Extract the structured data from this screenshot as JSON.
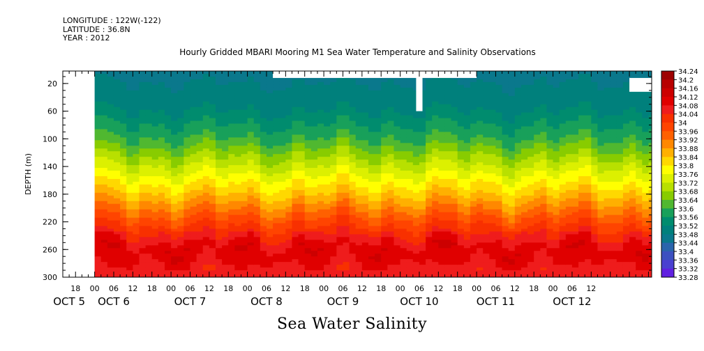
{
  "header": {
    "longitude": "LONGITUDE : 122W(-122)",
    "latitude": "LATITUDE : 36.8N",
    "year": "YEAR : 2012"
  },
  "chart_data": {
    "type": "heatmap",
    "title": "Hourly Gridded MBARI Mooring M1 Sea Water Temperature and Salinity Observations",
    "subtitle": "Sea Water Salinity",
    "ylabel": "DEPTH (m)",
    "xlabel": "",
    "y_reversed": true,
    "ylim": [
      300,
      2
    ],
    "xlim_hours": [
      -10,
      175
    ],
    "y_ticks": [
      20,
      60,
      100,
      140,
      180,
      220,
      260,
      300
    ],
    "x_hour_labels": [
      "18",
      "00",
      "06",
      "12",
      "18",
      "00",
      "06",
      "12",
      "18",
      "00",
      "06",
      "12",
      "18",
      "00",
      "06",
      "12",
      "18",
      "00",
      "06",
      "12",
      "18",
      "00",
      "06",
      "12",
      "18",
      "00",
      "06",
      "12"
    ],
    "x_hour_values": [
      -6,
      0,
      6,
      12,
      18,
      24,
      30,
      36,
      42,
      48,
      54,
      60,
      66,
      72,
      78,
      84,
      90,
      96,
      102,
      108,
      114,
      120,
      126,
      132,
      138,
      144,
      150,
      156
    ],
    "x_day_labels": [
      {
        "label": "OCT  5",
        "hour": -8
      },
      {
        "label": "OCT  6",
        "hour": 6
      },
      {
        "label": "OCT  7",
        "hour": 30
      },
      {
        "label": "OCT  8",
        "hour": 54
      },
      {
        "label": "OCT  9",
        "hour": 78
      },
      {
        "label": "OCT 10",
        "hour": 102
      },
      {
        "label": "OCT 11",
        "hour": 126
      },
      {
        "label": "OCT 12",
        "hour": 150
      }
    ],
    "colorbar_levels": [
      "34.24",
      "34.2",
      "34.16",
      "34.12",
      "34.08",
      "34.04",
      "34",
      "33.96",
      "33.92",
      "33.88",
      "33.84",
      "33.8",
      "33.76",
      "33.72",
      "33.68",
      "33.64",
      "33.6",
      "33.56",
      "33.52",
      "33.48",
      "33.44",
      "33.4",
      "33.36",
      "33.32",
      "33.28"
    ],
    "colorbar_colors": [
      "#9e0000",
      "#b80000",
      "#cc0000",
      "#e00000",
      "#ef1c1c",
      "#f83000",
      "#ff4400",
      "#ff6000",
      "#ff8800",
      "#ffb000",
      "#ffd800",
      "#ffff00",
      "#dcf000",
      "#b8e000",
      "#88cc00",
      "#50b830",
      "#18a05a",
      "#008c6e",
      "#00807c",
      "#0a788c",
      "#2a64ac",
      "#3c50c0",
      "#4a40d0",
      "#6020e0",
      "#a020f0"
    ],
    "depth_profile": [
      {
        "depth": 2,
        "salinity": 33.5
      },
      {
        "depth": 20,
        "salinity": 33.52
      },
      {
        "depth": 60,
        "salinity": 33.56
      },
      {
        "depth": 100,
        "salinity": 33.64
      },
      {
        "depth": 140,
        "salinity": 33.76
      },
      {
        "depth": 180,
        "salinity": 33.88
      },
      {
        "depth": 220,
        "salinity": 34.02
      },
      {
        "depth": 260,
        "salinity": 34.14
      },
      {
        "depth": 300,
        "salinity": 34.08
      }
    ],
    "missing_regions": [
      {
        "t0": -10,
        "t1": 0,
        "d0": 2,
        "d1": 300
      },
      {
        "t0": 56,
        "t1": 120,
        "d0": 2,
        "d1": 12
      },
      {
        "t0": 101,
        "t1": 103,
        "d0": 2,
        "d1": 60
      },
      {
        "t0": 168,
        "t1": 175,
        "d0": 12,
        "d1": 32
      }
    ]
  }
}
